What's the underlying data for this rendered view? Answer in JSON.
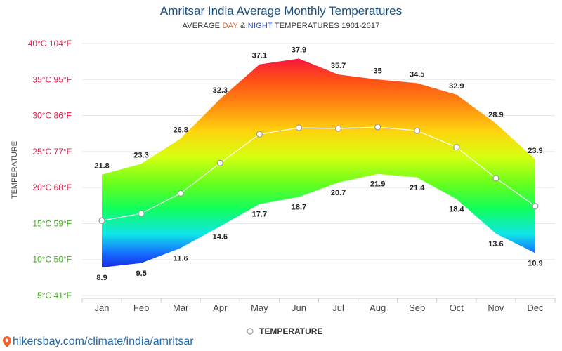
{
  "header": {
    "title": "Amritsar India Average Monthly Temperatures",
    "subtitle_prefix": "AVERAGE ",
    "subtitle_day": "DAY",
    "subtitle_amp": " & ",
    "subtitle_night": "NIGHT",
    "subtitle_suffix": " TEMPERATURES 1901-2017"
  },
  "footer": {
    "link_text": "hikersbay.com/climate/india/amritsar",
    "icon": "location-pin-icon"
  },
  "colors": {
    "title": "#1b4f80",
    "day_accent": "#e8602c",
    "night_accent": "#2a4fd6",
    "grid": "#e6e6e6",
    "axis_label": "#444444",
    "footer_link": "#2467a8"
  },
  "chart_data": {
    "type": "area",
    "categories": [
      "Jan",
      "Feb",
      "Mar",
      "Apr",
      "May",
      "Jun",
      "Jul",
      "Aug",
      "Sep",
      "Oct",
      "Nov",
      "Dec"
    ],
    "series": [
      {
        "role": "day",
        "values": [
          21.8,
          23.3,
          26.8,
          32.3,
          37.1,
          37.9,
          35.7,
          35,
          34.5,
          32.9,
          28.9,
          23.9
        ]
      },
      {
        "role": "night",
        "values": [
          8.9,
          9.5,
          11.6,
          14.6,
          17.7,
          18.7,
          20.7,
          21.9,
          21.4,
          18.4,
          13.6,
          10.9
        ]
      },
      {
        "name": "TEMPERATURE",
        "role": "average",
        "values": [
          15.4,
          16.4,
          19.2,
          23.4,
          27.4,
          28.3,
          28.2,
          28.4,
          27.9,
          25.6,
          21.3,
          17.4
        ]
      }
    ],
    "day_labels": [
      "21.8",
      "23.3",
      "26.8",
      "32.3",
      "37.1",
      "37.9",
      "35.7",
      "35",
      "34.5",
      "32.9",
      "28.9",
      "23.9"
    ],
    "night_labels": [
      "8.9",
      "9.5",
      "11.6",
      "14.6",
      "17.7",
      "18.7",
      "20.7",
      "21.9",
      "21.4",
      "18.4",
      "13.6",
      "10.9"
    ],
    "ylabel": "TEMPERATURE",
    "ylim": [
      5,
      40
    ],
    "yticks": [
      {
        "value": 40,
        "label": "40°C 104°F",
        "color": "#e8194a"
      },
      {
        "value": 35,
        "label": "35°C 95°F",
        "color": "#e8194a"
      },
      {
        "value": 30,
        "label": "30°C 86°F",
        "color": "#e8194a"
      },
      {
        "value": 25,
        "label": "25°C 77°F",
        "color": "#e8194a"
      },
      {
        "value": 20,
        "label": "20°C 68°F",
        "color": "#e8194a"
      },
      {
        "value": 15,
        "label": "15°C 59°F",
        "color": "#44aa22"
      },
      {
        "value": 10,
        "label": "10°C 50°F",
        "color": "#44aa22"
      },
      {
        "value": 5,
        "label": "5°C 41°F",
        "color": "#44aa22"
      }
    ],
    "grid": true,
    "legend": {
      "position": "bottom",
      "label": "TEMPERATURE"
    }
  }
}
